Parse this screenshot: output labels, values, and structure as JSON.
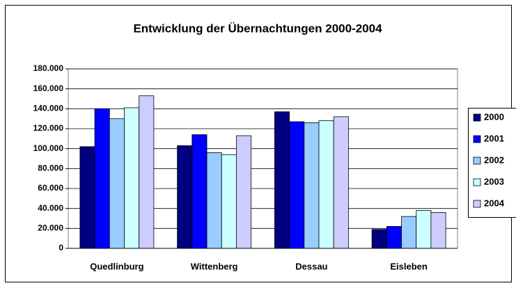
{
  "chart_data": {
    "type": "bar",
    "title": "Entwicklung der Übernachtungen 2000-2004",
    "categories": [
      "Quedlinburg",
      "Wittenberg",
      "Dessau",
      "Eisleben"
    ],
    "series": [
      {
        "name": "2000",
        "color": "#000080",
        "values": [
          102000,
          103000,
          137000,
          19000
        ]
      },
      {
        "name": "2001",
        "color": "#0000ff",
        "values": [
          140000,
          114000,
          127000,
          22000
        ]
      },
      {
        "name": "2002",
        "color": "#99ccff",
        "values": [
          130000,
          96000,
          126000,
          32000
        ]
      },
      {
        "name": "2003",
        "color": "#ccffff",
        "values": [
          141000,
          94000,
          128000,
          38000
        ]
      },
      {
        "name": "2004",
        "color": "#ccccff",
        "values": [
          153000,
          113000,
          132000,
          36000
        ]
      }
    ],
    "ylim": [
      0,
      180000
    ],
    "yticks": [
      0,
      {
        "value": 20000,
        "label": "20.000"
      },
      {
        "value": 40000,
        "label": "40.000"
      },
      {
        "value": 60000,
        "label": "60.000"
      },
      {
        "value": 80000,
        "label": "80.000"
      },
      {
        "value": 100000,
        "label": "100.000"
      },
      {
        "value": 120000,
        "label": "120.000"
      },
      {
        "value": 140000,
        "label": "140.000"
      },
      {
        "value": 160000,
        "label": "160.000"
      },
      {
        "value": 180000,
        "label": "180.000"
      }
    ],
    "grid": true,
    "legend": "right"
  }
}
